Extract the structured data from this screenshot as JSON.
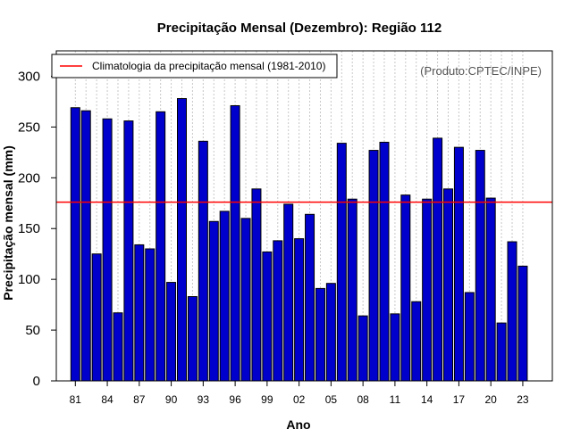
{
  "chart_data": {
    "type": "bar",
    "title": "Precipitação Mensal (Dezembro): Região 112",
    "xlabel": "Ano",
    "ylabel": "Precipitação mensal (mm)",
    "credit": "(Produto:CPTEC/INPE)",
    "ylim": [
      0,
      325
    ],
    "yticks": [
      0,
      50,
      100,
      150,
      200,
      250,
      300
    ],
    "categories": [
      "1981",
      "1982",
      "1983",
      "1984",
      "1985",
      "1986",
      "1987",
      "1988",
      "1989",
      "1990",
      "1991",
      "1992",
      "1993",
      "1994",
      "1995",
      "1996",
      "1997",
      "1998",
      "1999",
      "2000",
      "2001",
      "2002",
      "2003",
      "2004",
      "2005",
      "2006",
      "2007",
      "2008",
      "2009",
      "2010",
      "2011",
      "2012",
      "2013",
      "2014",
      "2015",
      "2016",
      "2017",
      "2018",
      "2019",
      "2020",
      "2021",
      "2022",
      "2023"
    ],
    "xtick_labels": [
      "81",
      "84",
      "87",
      "90",
      "93",
      "96",
      "99",
      "02",
      "05",
      "08",
      "11",
      "14",
      "17",
      "20",
      "23"
    ],
    "xtick_index": [
      0,
      3,
      6,
      9,
      12,
      15,
      18,
      21,
      24,
      27,
      30,
      33,
      36,
      39,
      42
    ],
    "values": [
      269,
      266,
      125,
      258,
      67,
      256,
      134,
      130,
      265,
      97,
      278,
      83,
      236,
      157,
      167,
      271,
      160,
      189,
      127,
      138,
      174,
      140,
      164,
      91,
      96,
      234,
      179,
      64,
      227,
      235,
      66,
      183,
      78,
      179,
      239,
      189,
      230,
      87,
      227,
      180,
      57,
      137,
      113
    ],
    "bar_color": "#0000cc",
    "reference_line": {
      "label": "Climatologia da precipitação mensal (1981-2010)",
      "value": 176,
      "color": "#ff0000"
    },
    "legend_position": "top-left",
    "grid": "vertical dotted"
  }
}
